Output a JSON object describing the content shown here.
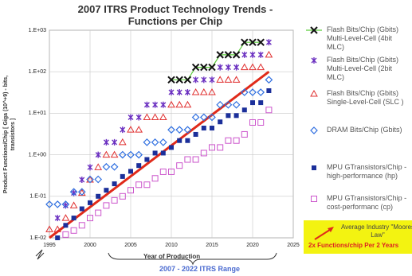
{
  "chart_data": {
    "type": "scatter",
    "title": "2007 ITRS Product Technology Trends - Functions per Chip",
    "ylabel": "Product Functions/Chip [ Giga (10^+9) - bits, transistors ]",
    "xlabel": "Year of Production",
    "range_label": "2007 - 2022 ITRS Range",
    "log_y": true,
    "grid": true,
    "xlim": [
      1995,
      2025
    ],
    "xticks": [
      1995,
      2000,
      2005,
      2010,
      2015,
      2020,
      2025
    ],
    "ylim": [
      0.01,
      1000
    ],
    "yticks": [
      {
        "value": 0.01,
        "label": "1.E-02"
      },
      {
        "value": 0.1,
        "label": "1.E-01"
      },
      {
        "value": 1,
        "label": "1.E+00"
      },
      {
        "value": 10,
        "label": "1.E+01"
      },
      {
        "value": 100,
        "label": "1.E+02"
      },
      {
        "value": 1000,
        "label": "1.E+03"
      }
    ],
    "series": [
      {
        "name": "Flash Bits/Chip (Gbits) Multi-Level-Cell (4bit MLC)",
        "marker": "x",
        "color": "#111111",
        "line_color": "#5ccd3c",
        "x": [
          2010,
          2011,
          2012,
          2013,
          2014,
          2015,
          2016,
          2017,
          2018,
          2019,
          2020,
          2021
        ],
        "values": [
          64,
          64,
          64,
          128,
          128,
          128,
          256,
          256,
          256,
          512,
          512,
          512
        ]
      },
      {
        "name": "Flash Bits/Chip (Gbits) Multi-Level-Cell (2bit MLC)",
        "marker": "asterisk",
        "color": "#6a2fc0",
        "x": [
          1996,
          1997,
          1998,
          1999,
          2000,
          2001,
          2002,
          2003,
          2004,
          2005,
          2006,
          2007,
          2008,
          2009,
          2010,
          2011,
          2012,
          2013,
          2014,
          2015,
          2016,
          2017,
          2018,
          2019,
          2020,
          2021,
          2022
        ],
        "values": [
          0.03,
          0.06,
          0.12,
          0.25,
          0.5,
          1,
          2,
          2,
          4,
          8,
          8,
          16,
          16,
          16,
          32,
          32,
          32,
          64,
          64,
          64,
          128,
          128,
          128,
          256,
          256,
          256,
          512
        ]
      },
      {
        "name": "Flash Bits/Chip (Gbits) Single-Level-Cell (SLC )",
        "marker": "triangle",
        "color": "#e03030",
        "x": [
          1995,
          1996,
          1997,
          1998,
          1999,
          2000,
          2001,
          2002,
          2003,
          2004,
          2005,
          2006,
          2007,
          2008,
          2009,
          2010,
          2011,
          2012,
          2013,
          2014,
          2015,
          2016,
          2017,
          2018,
          2019,
          2020,
          2021,
          2022
        ],
        "values": [
          0.016,
          0.016,
          0.03,
          0.06,
          0.12,
          0.25,
          0.5,
          1,
          1,
          2,
          4,
          4,
          8,
          8,
          8,
          16,
          16,
          16,
          32,
          32,
          32,
          64,
          64,
          64,
          128,
          128,
          128,
          256
        ]
      },
      {
        "name": "DRAM Bits/Chip (Gbits)",
        "marker": "diamond",
        "color": "#2f6fe0",
        "x": [
          1995,
          1996,
          1997,
          1998,
          1999,
          2000,
          2001,
          2002,
          2003,
          2004,
          2005,
          2006,
          2007,
          2008,
          2009,
          2010,
          2011,
          2012,
          2013,
          2014,
          2015,
          2016,
          2017,
          2018,
          2019,
          2020,
          2021,
          2022
        ],
        "values": [
          0.064,
          0.064,
          0.064,
          0.128,
          0.128,
          0.256,
          0.256,
          0.512,
          0.512,
          1,
          1,
          1,
          2,
          2,
          2,
          4,
          4,
          4,
          8,
          8,
          8,
          16,
          16,
          16,
          32,
          32,
          32,
          64
        ]
      },
      {
        "name": "MPU GTransistors/Chip - high-performance (hp)",
        "marker": "square",
        "color": "#1b2f9a",
        "x": [
          1996,
          1997,
          1998,
          1999,
          2000,
          2001,
          2002,
          2003,
          2004,
          2005,
          2006,
          2007,
          2008,
          2009,
          2010,
          2011,
          2012,
          2013,
          2014,
          2015,
          2016,
          2017,
          2018,
          2019,
          2020,
          2021,
          2022
        ],
        "values": [
          0.01,
          0.02,
          0.03,
          0.05,
          0.07,
          0.1,
          0.14,
          0.2,
          0.3,
          0.4,
          0.55,
          0.77,
          1.1,
          1.1,
          1.5,
          2.2,
          2.2,
          3.1,
          4.4,
          4.4,
          6.2,
          8.8,
          8.8,
          12,
          18,
          18,
          35
        ]
      },
      {
        "name": "MPU GTransistors/Chip - cost-performanc (cp)",
        "marker": "square-open",
        "color": "#cc55cc",
        "x": [
          1997,
          1998,
          1999,
          2000,
          2001,
          2002,
          2003,
          2004,
          2005,
          2006,
          2007,
          2008,
          2009,
          2010,
          2011,
          2012,
          2013,
          2014,
          2015,
          2016,
          2017,
          2018,
          2019,
          2020,
          2021,
          2022
        ],
        "values": [
          0.012,
          0.015,
          0.02,
          0.03,
          0.04,
          0.06,
          0.08,
          0.1,
          0.14,
          0.19,
          0.19,
          0.27,
          0.39,
          0.39,
          0.55,
          0.77,
          0.77,
          1.1,
          1.5,
          1.5,
          2.2,
          2.2,
          3.1,
          6,
          6,
          12
        ]
      }
    ],
    "trend": {
      "name": "Average Industry \"Moores Law\"",
      "note": "2x Functions/chip Per 2 Years",
      "color": "#e02a1a",
      "x": [
        1995,
        2022
      ],
      "values": [
        0.01,
        100
      ]
    }
  }
}
